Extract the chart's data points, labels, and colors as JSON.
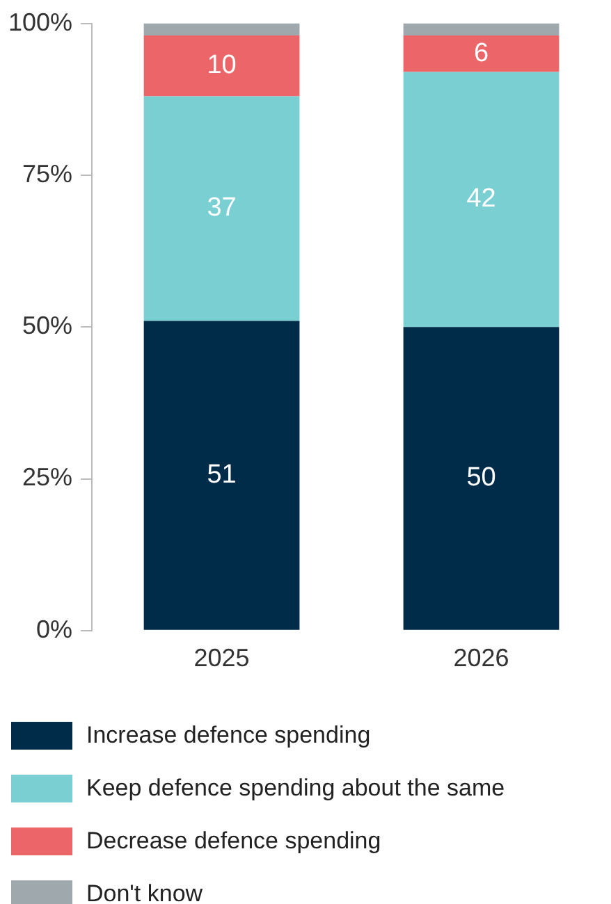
{
  "chart_data": {
    "type": "bar",
    "stacked": true,
    "categories": [
      "2025",
      "2026"
    ],
    "series": [
      {
        "name": "Increase defence spending",
        "color": "#002b49",
        "values": [
          51,
          50
        ],
        "value_labels": [
          "51",
          "50"
        ]
      },
      {
        "name": "Keep defence spending about the same",
        "color": "#7acfd2",
        "values": [
          37,
          42
        ],
        "value_labels": [
          "37",
          "42"
        ]
      },
      {
        "name": "Decrease defence spending",
        "color": "#ec6569",
        "values": [
          10,
          6
        ],
        "value_labels": [
          "10",
          "6"
        ]
      },
      {
        "name": "Don't know",
        "color": "#9fa9ad",
        "values": [
          2,
          2
        ],
        "value_labels": [
          null,
          null
        ]
      }
    ],
    "ylim": [
      0,
      100
    ],
    "yticks": [
      {
        "value": 0,
        "label": "0%"
      },
      {
        "value": 25,
        "label": "25%"
      },
      {
        "value": 50,
        "label": "50%"
      },
      {
        "value": 75,
        "label": "75%"
      },
      {
        "value": 100,
        "label": "100%"
      }
    ],
    "grid": false,
    "legend": "bottom"
  }
}
